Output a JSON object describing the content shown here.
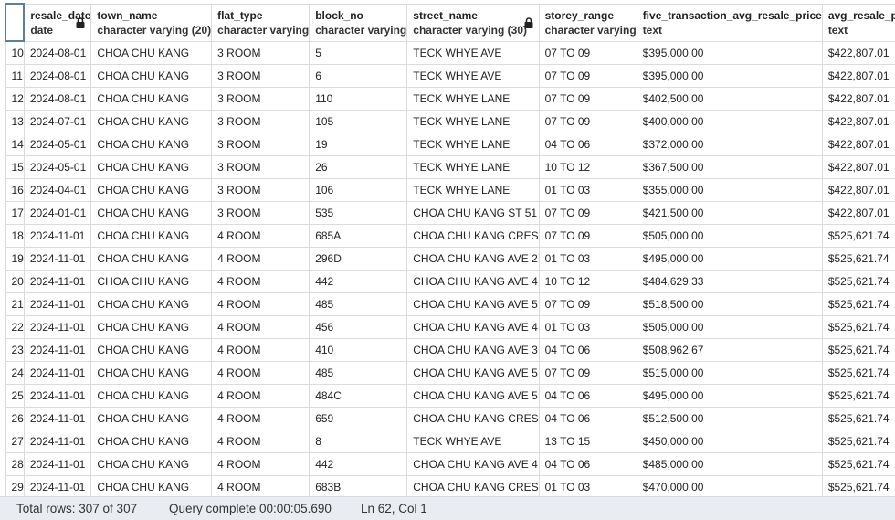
{
  "columns": [
    {
      "name": "resale_date",
      "type": "date",
      "locked": true
    },
    {
      "name": "town_name",
      "type": "character varying (20)",
      "locked": false
    },
    {
      "name": "flat_type",
      "type": "character varying",
      "locked": false
    },
    {
      "name": "block_no",
      "type": "character varying",
      "locked": false
    },
    {
      "name": "street_name",
      "type": "character varying (30)",
      "locked": true
    },
    {
      "name": "storey_range",
      "type": "character varying",
      "locked": false
    },
    {
      "name": "five_transaction_avg_resale_price",
      "type": "text",
      "locked": false
    },
    {
      "name": "avg_resale_price",
      "type": "text",
      "locked": false
    }
  ],
  "rows": [
    {
      "n": "10",
      "cells": [
        "2024-08-01",
        "CHOA CHU KANG",
        "3 ROOM",
        "5",
        "TECK WHYE AVE",
        "07 TO 09",
        "$395,000.00",
        "$422,807.01"
      ]
    },
    {
      "n": "11",
      "cells": [
        "2024-08-01",
        "CHOA CHU KANG",
        "3 ROOM",
        "6",
        "TECK WHYE AVE",
        "07 TO 09",
        "$395,000.00",
        "$422,807.01"
      ]
    },
    {
      "n": "12",
      "cells": [
        "2024-08-01",
        "CHOA CHU KANG",
        "3 ROOM",
        "110",
        "TECK WHYE LANE",
        "07 TO 09",
        "$402,500.00",
        "$422,807.01"
      ]
    },
    {
      "n": "13",
      "cells": [
        "2024-07-01",
        "CHOA CHU KANG",
        "3 ROOM",
        "105",
        "TECK WHYE LANE",
        "07 TO 09",
        "$400,000.00",
        "$422,807.01"
      ]
    },
    {
      "n": "14",
      "cells": [
        "2024-05-01",
        "CHOA CHU KANG",
        "3 ROOM",
        "19",
        "TECK WHYE LANE",
        "04 TO 06",
        "$372,000.00",
        "$422,807.01"
      ]
    },
    {
      "n": "15",
      "cells": [
        "2024-05-01",
        "CHOA CHU KANG",
        "3 ROOM",
        "26",
        "TECK WHYE LANE",
        "10 TO 12",
        "$367,500.00",
        "$422,807.01"
      ]
    },
    {
      "n": "16",
      "cells": [
        "2024-04-01",
        "CHOA CHU KANG",
        "3 ROOM",
        "106",
        "TECK WHYE LANE",
        "01 TO 03",
        "$355,000.00",
        "$422,807.01"
      ]
    },
    {
      "n": "17",
      "cells": [
        "2024-01-01",
        "CHOA CHU KANG",
        "3 ROOM",
        "535",
        "CHOA CHU KANG ST 51",
        "07 TO 09",
        "$421,500.00",
        "$422,807.01"
      ]
    },
    {
      "n": "18",
      "cells": [
        "2024-11-01",
        "CHOA CHU KANG",
        "4 ROOM",
        "685A",
        "CHOA CHU KANG CRES",
        "07 TO 09",
        "$505,000.00",
        "$525,621.74"
      ]
    },
    {
      "n": "19",
      "cells": [
        "2024-11-01",
        "CHOA CHU KANG",
        "4 ROOM",
        "296D",
        "CHOA CHU KANG AVE 2",
        "01 TO 03",
        "$495,000.00",
        "$525,621.74"
      ]
    },
    {
      "n": "20",
      "cells": [
        "2024-11-01",
        "CHOA CHU KANG",
        "4 ROOM",
        "442",
        "CHOA CHU KANG AVE 4",
        "10 TO 12",
        "$484,629.33",
        "$525,621.74"
      ]
    },
    {
      "n": "21",
      "cells": [
        "2024-11-01",
        "CHOA CHU KANG",
        "4 ROOM",
        "485",
        "CHOA CHU KANG AVE 5",
        "07 TO 09",
        "$518,500.00",
        "$525,621.74"
      ]
    },
    {
      "n": "22",
      "cells": [
        "2024-11-01",
        "CHOA CHU KANG",
        "4 ROOM",
        "456",
        "CHOA CHU KANG AVE 4",
        "01 TO 03",
        "$505,000.00",
        "$525,621.74"
      ]
    },
    {
      "n": "23",
      "cells": [
        "2024-11-01",
        "CHOA CHU KANG",
        "4 ROOM",
        "410",
        "CHOA CHU KANG AVE 3",
        "04 TO 06",
        "$508,962.67",
        "$525,621.74"
      ]
    },
    {
      "n": "24",
      "cells": [
        "2024-11-01",
        "CHOA CHU KANG",
        "4 ROOM",
        "485",
        "CHOA CHU KANG AVE 5",
        "07 TO 09",
        "$515,000.00",
        "$525,621.74"
      ]
    },
    {
      "n": "25",
      "cells": [
        "2024-11-01",
        "CHOA CHU KANG",
        "4 ROOM",
        "484C",
        "CHOA CHU KANG AVE 5",
        "04 TO 06",
        "$495,000.00",
        "$525,621.74"
      ]
    },
    {
      "n": "26",
      "cells": [
        "2024-11-01",
        "CHOA CHU KANG",
        "4 ROOM",
        "659",
        "CHOA CHU KANG CRES",
        "04 TO 06",
        "$512,500.00",
        "$525,621.74"
      ]
    },
    {
      "n": "27",
      "cells": [
        "2024-11-01",
        "CHOA CHU KANG",
        "4 ROOM",
        "8",
        "TECK WHYE AVE",
        "13 TO 15",
        "$450,000.00",
        "$525,621.74"
      ]
    },
    {
      "n": "28",
      "cells": [
        "2024-11-01",
        "CHOA CHU KANG",
        "4 ROOM",
        "442",
        "CHOA CHU KANG AVE 4",
        "04 TO 06",
        "$485,000.00",
        "$525,621.74"
      ]
    },
    {
      "n": "29",
      "cells": [
        "2024-11-01",
        "CHOA CHU KANG",
        "4 ROOM",
        "683B",
        "CHOA CHU KANG CRES",
        "01 TO 03",
        "$470,000.00",
        "$525,621.74"
      ]
    }
  ],
  "status": {
    "total_rows": "Total rows: 307 of 307",
    "query": "Query complete 00:00:05.690",
    "cursor": "Ln 62, Col 1"
  },
  "icons": {
    "lock": "lock-icon"
  }
}
